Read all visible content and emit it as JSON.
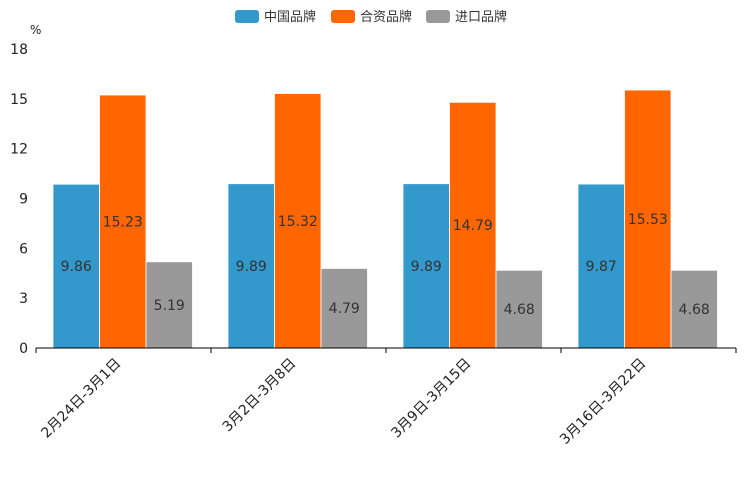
{
  "chart_data": {
    "type": "bar",
    "unit": "%",
    "categories": [
      "2月24日-3月1日",
      "3月2日-3月8日",
      "3月9日-3月15日",
      "3月16日-3月22日"
    ],
    "series": [
      {
        "name": "中国品牌",
        "color": "#3399cc",
        "values": [
          9.86,
          9.89,
          9.89,
          9.87
        ],
        "labels": [
          "9.86",
          "9.89",
          "9.89",
          "9.87"
        ]
      },
      {
        "name": "合资品牌",
        "color": "#ff6600",
        "values": [
          15.23,
          15.32,
          14.79,
          15.53
        ],
        "labels": [
          "15.23",
          "15.32",
          "14.79",
          "15.53"
        ]
      },
      {
        "name": "进口品牌",
        "color": "#999999",
        "values": [
          5.19,
          4.79,
          4.68,
          4.68
        ],
        "labels": [
          "5.19",
          "4.79",
          "4.68",
          "4.68"
        ]
      }
    ],
    "ylim": [
      0,
      18
    ],
    "yticks": [
      "0",
      "3",
      "6",
      "9",
      "12",
      "15",
      "18"
    ],
    "legend_position": "top-center"
  }
}
